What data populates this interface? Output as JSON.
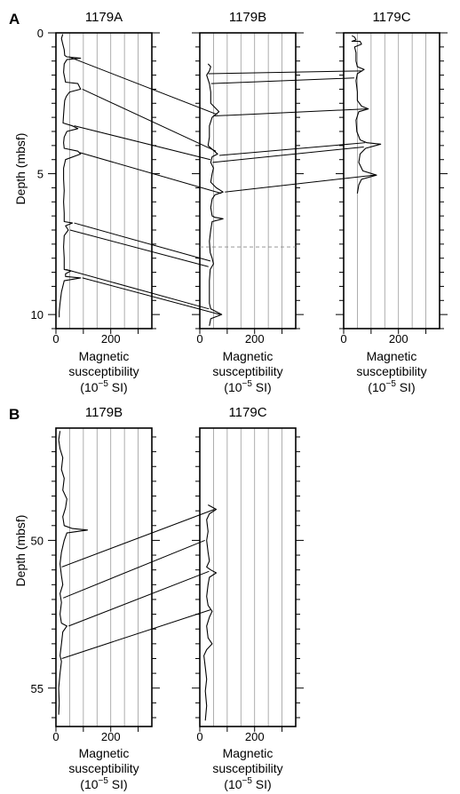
{
  "panels": [
    {
      "label": "A",
      "ylabel": "Depth (mbsf)",
      "yticks": [
        "0",
        "5",
        "10"
      ],
      "xticks": [
        "0",
        "200"
      ],
      "xlabel_line1": "Magnetic",
      "xlabel_line2": "susceptibility",
      "xlabel_unit_base": "(10",
      "xlabel_unit_exp": "−5",
      "xlabel_unit_rest": " SI)",
      "holes": [
        {
          "title": "1179A"
        },
        {
          "title": "1179B"
        },
        {
          "title": "1179C"
        }
      ]
    },
    {
      "label": "B",
      "ylabel": "Depth (mbsf)",
      "yticks": [
        "50",
        "55"
      ],
      "xticks": [
        "0",
        "200"
      ],
      "xlabel_line1": "Magnetic",
      "xlabel_line2": "susceptibility",
      "xlabel_unit_base": "(10",
      "xlabel_unit_exp": "−5",
      "xlabel_unit_rest": " SI)",
      "holes": [
        {
          "title": "1179B"
        },
        {
          "title": "1179C"
        }
      ]
    }
  ],
  "chart_data": [
    {
      "type": "line",
      "panel": "A",
      "xlabel": "Magnetic susceptibility (10−5 SI)",
      "ylabel": "Depth (mbsf)",
      "xlim": [
        0,
        350
      ],
      "ylim": [
        10.5,
        0
      ],
      "x_grid": [
        50,
        100,
        150,
        200,
        250,
        300
      ],
      "series": [
        {
          "name": "1179A",
          "points": [
            [
              25,
              0.05
            ],
            [
              20,
              0.2
            ],
            [
              25,
              0.4
            ],
            [
              30,
              0.6
            ],
            [
              32,
              0.8
            ],
            [
              40,
              0.85
            ],
            [
              90,
              0.9
            ],
            [
              40,
              0.95
            ],
            [
              30,
              1.1
            ],
            [
              28,
              1.4
            ],
            [
              35,
              1.75
            ],
            [
              80,
              1.8
            ],
            [
              90,
              2.0
            ],
            [
              50,
              2.1
            ],
            [
              38,
              2.25
            ],
            [
              32,
              2.4
            ],
            [
              30,
              2.6
            ],
            [
              28,
              2.9
            ],
            [
              26,
              3.2
            ],
            [
              60,
              3.3
            ],
            [
              80,
              3.4
            ],
            [
              40,
              3.5
            ],
            [
              30,
              3.7
            ],
            [
              28,
              3.9
            ],
            [
              30,
              4.1
            ],
            [
              80,
              4.2
            ],
            [
              90,
              4.3
            ],
            [
              35,
              4.5
            ],
            [
              28,
              4.8
            ],
            [
              28,
              5.2
            ],
            [
              30,
              5.6
            ],
            [
              28,
              6.0
            ],
            [
              30,
              6.4
            ],
            [
              30,
              6.7
            ],
            [
              60,
              6.75
            ],
            [
              35,
              6.85
            ],
            [
              45,
              7.0
            ],
            [
              30,
              7.2
            ],
            [
              28,
              7.6
            ],
            [
              30,
              8.0
            ],
            [
              30,
              8.4
            ],
            [
              55,
              8.45
            ],
            [
              35,
              8.55
            ],
            [
              35,
              8.65
            ],
            [
              90,
              8.7
            ],
            [
              30,
              8.8
            ],
            [
              20,
              9.2
            ],
            [
              15,
              9.6
            ],
            [
              12,
              9.9
            ],
            [
              12,
              10.1
            ]
          ]
        },
        {
          "name": "1179B",
          "points": [
            [
              30,
              1.1
            ],
            [
              40,
              1.2
            ],
            [
              35,
              1.35
            ],
            [
              25,
              1.5
            ],
            [
              35,
              1.8
            ],
            [
              40,
              2.1
            ],
            [
              40,
              2.5
            ],
            [
              70,
              2.8
            ],
            [
              45,
              3.0
            ],
            [
              35,
              3.3
            ],
            [
              35,
              3.7
            ],
            [
              30,
              4.0
            ],
            [
              65,
              4.3
            ],
            [
              45,
              4.4
            ],
            [
              40,
              4.6
            ],
            [
              50,
              4.8
            ],
            [
              45,
              5.0
            ],
            [
              40,
              5.3
            ],
            [
              60,
              5.5
            ],
            [
              85,
              5.65
            ],
            [
              55,
              5.75
            ],
            [
              45,
              5.9
            ],
            [
              40,
              6.2
            ],
            [
              45,
              6.5
            ],
            [
              55,
              6.55
            ],
            [
              85,
              6.6
            ],
            [
              45,
              6.7
            ],
            [
              40,
              7.0
            ],
            [
              35,
              7.4
            ],
            [
              38,
              7.8
            ],
            [
              45,
              8.0
            ],
            [
              50,
              8.2
            ],
            [
              38,
              8.4
            ],
            [
              35,
              8.8
            ],
            [
              35,
              9.2
            ],
            [
              35,
              9.6
            ],
            [
              40,
              9.8
            ],
            [
              80,
              10.0
            ],
            [
              40,
              10.15
            ],
            [
              35,
              10.4
            ]
          ]
        },
        {
          "name": "1179C",
          "points": [
            [
              30,
              0.1
            ],
            [
              40,
              0.15
            ],
            [
              45,
              0.25
            ],
            [
              30,
              0.3
            ],
            [
              60,
              0.3
            ],
            [
              65,
              0.4
            ],
            [
              40,
              0.5
            ],
            [
              45,
              0.7
            ],
            [
              45,
              1.0
            ],
            [
              50,
              1.2
            ],
            [
              75,
              1.3
            ],
            [
              50,
              1.45
            ],
            [
              45,
              1.7
            ],
            [
              50,
              2.1
            ],
            [
              50,
              2.4
            ],
            [
              65,
              2.6
            ],
            [
              90,
              2.7
            ],
            [
              55,
              2.8
            ],
            [
              45,
              3.1
            ],
            [
              48,
              3.5
            ],
            [
              60,
              3.8
            ],
            [
              85,
              3.9
            ],
            [
              135,
              3.95
            ],
            [
              80,
              4.1
            ],
            [
              60,
              4.3
            ],
            [
              55,
              4.6
            ],
            [
              70,
              4.9
            ],
            [
              120,
              5.05
            ],
            [
              65,
              5.2
            ],
            [
              55,
              5.4
            ],
            [
              50,
              5.7
            ]
          ]
        }
      ],
      "tie_lines": [
        {
          "from": "1179A",
          "to": "1179B",
          "depth_from": 0.85,
          "depth_to": 2.9
        },
        {
          "from": "1179A",
          "to": "1179B",
          "depth_from": 2.0,
          "depth_to": 4.2
        },
        {
          "from": "1179A",
          "to": "1179B",
          "depth_from": 3.3,
          "depth_to": 4.5
        },
        {
          "from": "1179A",
          "to": "1179B",
          "depth_from": 4.25,
          "depth_to": 5.7
        },
        {
          "from": "1179A",
          "to": "1179B",
          "depth_from": 6.75,
          "depth_to": 8.1
        },
        {
          "from": "1179A",
          "to": "1179B",
          "depth_from": 7.0,
          "depth_to": 8.3
        },
        {
          "from": "1179A",
          "to": "1179B",
          "depth_from": 8.4,
          "depth_to": 9.8
        },
        {
          "from": "1179A",
          "to": "1179B",
          "depth_from": 8.7,
          "depth_to": 10.0
        },
        {
          "from": "1179B",
          "to": "1179C",
          "depth_from": 1.45,
          "depth_to": 1.35
        },
        {
          "from": "1179B",
          "to": "1179C",
          "depth_from": 1.8,
          "depth_to": 1.6
        },
        {
          "from": "1179B",
          "to": "1179C",
          "depth_from": 2.95,
          "depth_to": 2.7
        },
        {
          "from": "1179B",
          "to": "1179C",
          "depth_from": 4.35,
          "depth_to": 3.9
        },
        {
          "from": "1179B",
          "to": "1179C",
          "depth_from": 4.6,
          "depth_to": 4.05
        },
        {
          "from": "1179B",
          "to": "1179C",
          "depth_from": 5.65,
          "depth_to": 5.05
        }
      ],
      "reference_line": {
        "hole": "1179B",
        "depth": 7.6,
        "style": "dashed"
      }
    },
    {
      "type": "line",
      "panel": "B",
      "xlabel": "Magnetic susceptibility (10−5 SI)",
      "ylabel": "Depth (mbsf)",
      "xlim": [
        0,
        350
      ],
      "ylim": [
        56.3,
        46.2
      ],
      "x_grid": [
        50,
        100,
        150,
        200,
        250,
        300
      ],
      "series": [
        {
          "name": "1179B",
          "points": [
            [
              15,
              46.3
            ],
            [
              10,
              46.6
            ],
            [
              15,
              46.9
            ],
            [
              25,
              47.2
            ],
            [
              20,
              47.6
            ],
            [
              30,
              47.9
            ],
            [
              25,
              48.3
            ],
            [
              40,
              48.6
            ],
            [
              35,
              48.9
            ],
            [
              25,
              49.2
            ],
            [
              30,
              49.5
            ],
            [
              60,
              49.6
            ],
            [
              115,
              49.65
            ],
            [
              40,
              49.75
            ],
            [
              30,
              50.0
            ],
            [
              20,
              50.4
            ],
            [
              15,
              50.8
            ],
            [
              20,
              51.2
            ],
            [
              25,
              51.5
            ],
            [
              15,
              51.8
            ],
            [
              20,
              52.1
            ],
            [
              15,
              52.5
            ],
            [
              20,
              52.8
            ],
            [
              40,
              52.9
            ],
            [
              25,
              53.1
            ],
            [
              20,
              53.5
            ],
            [
              15,
              53.9
            ],
            [
              20,
              54.1
            ],
            [
              15,
              54.5
            ],
            [
              10,
              55.0
            ],
            [
              12,
              55.5
            ],
            [
              10,
              55.9
            ]
          ]
        },
        {
          "name": "1179C",
          "points": [
            [
              30,
              48.8
            ],
            [
              60,
              48.95
            ],
            [
              35,
              49.1
            ],
            [
              25,
              49.3
            ],
            [
              30,
              49.7
            ],
            [
              25,
              50.0
            ],
            [
              30,
              50.4
            ],
            [
              35,
              50.7
            ],
            [
              25,
              50.9
            ],
            [
              40,
              51.0
            ],
            [
              60,
              51.1
            ],
            [
              35,
              51.25
            ],
            [
              30,
              51.5
            ],
            [
              25,
              51.9
            ],
            [
              30,
              52.2
            ],
            [
              45,
              52.4
            ],
            [
              35,
              52.6
            ],
            [
              25,
              52.9
            ],
            [
              30,
              53.3
            ],
            [
              45,
              53.5
            ],
            [
              25,
              53.7
            ],
            [
              15,
              53.9
            ],
            [
              20,
              54.3
            ],
            [
              25,
              54.7
            ],
            [
              20,
              55.1
            ],
            [
              25,
              55.6
            ],
            [
              20,
              56.1
            ]
          ]
        }
      ],
      "tie_lines": [
        {
          "from": "1179B",
          "to": "1179C",
          "depth_from": 50.9,
          "depth_to": 48.95
        },
        {
          "from": "1179B",
          "to": "1179C",
          "depth_from": 51.95,
          "depth_to": 50.0
        },
        {
          "from": "1179B",
          "to": "1179C",
          "depth_from": 52.9,
          "depth_to": 51.05
        },
        {
          "from": "1179B",
          "to": "1179C",
          "depth_from": 54.0,
          "depth_to": 52.35
        }
      ]
    }
  ]
}
